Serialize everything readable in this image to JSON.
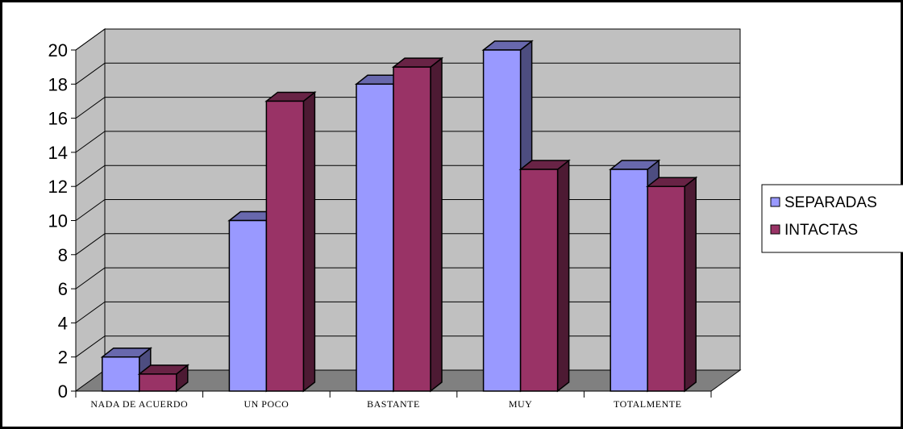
{
  "chart_data": {
    "type": "bar",
    "categories": [
      "NADA DE ACUERDO",
      "UN POCO",
      "BASTANTE",
      "MUY",
      "TOTALMENTE"
    ],
    "series": [
      {
        "name": "SEPARADAS",
        "values": [
          2,
          10,
          18,
          20,
          13
        ]
      },
      {
        "name": "INTACTAS",
        "values": [
          1,
          17,
          19,
          13,
          12
        ]
      }
    ],
    "ylim": [
      0,
      20
    ],
    "yticks": [
      "0",
      "2",
      "4",
      "6",
      "8",
      "10",
      "12",
      "14",
      "16",
      "18",
      "20"
    ],
    "grid": true,
    "legend": "right",
    "style": "3d"
  },
  "colors": {
    "SEPARADAS": "#9999ff",
    "INTACTAS": "#993366",
    "wall": "#c0c0c0",
    "floor": "#808080"
  }
}
